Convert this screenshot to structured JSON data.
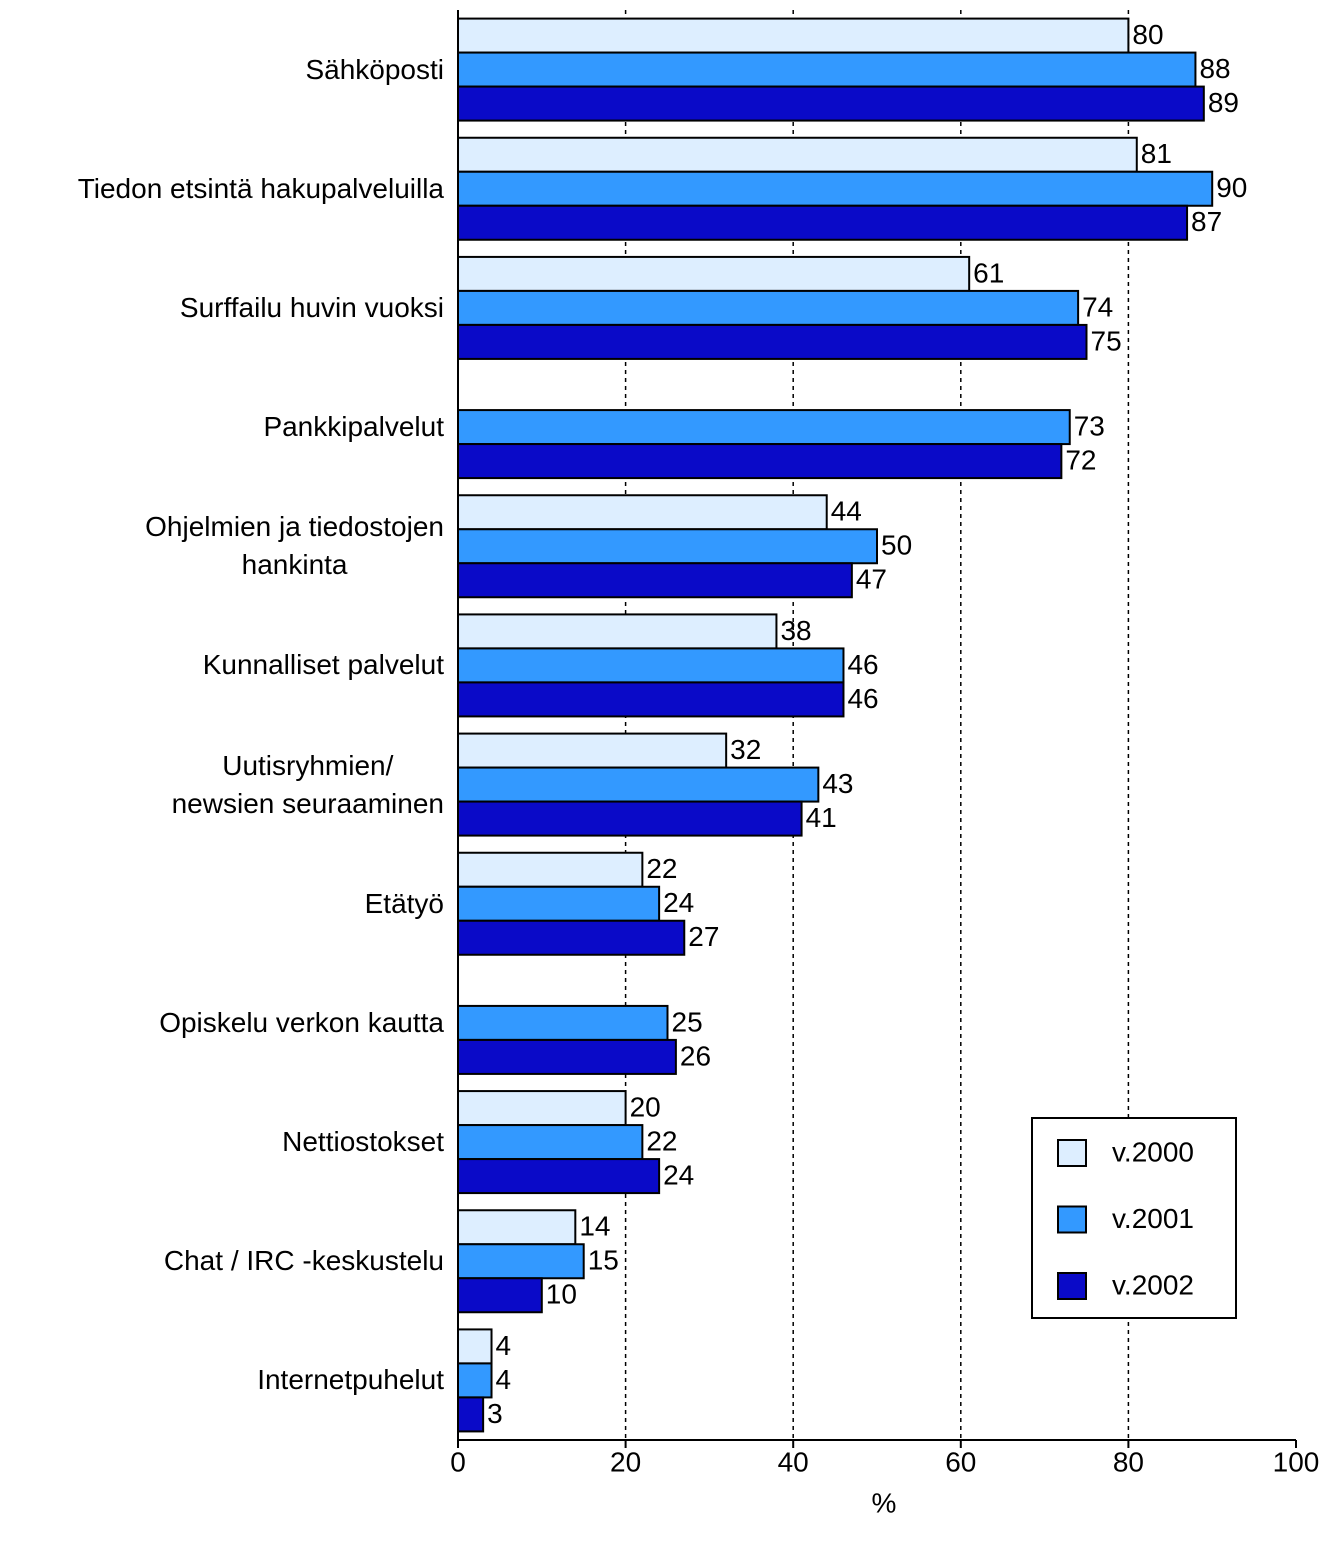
{
  "chart_data": {
    "type": "hbar",
    "categories": [
      "Sähköposti",
      "Tiedon etsintä hakupalveluilla",
      "Surffailu huvin vuoksi",
      "Pankkipalvelut",
      "Ohjelmien  ja tiedostojen\nhankinta",
      "Kunnalliset palvelut",
      "Uutisryhmien/\nnewsien seuraaminen",
      "Etätyö",
      "Opiskelu verkon kautta",
      "Nettiostokset",
      "Chat / IRC -keskustelu",
      "Internetpuhelut"
    ],
    "series": [
      {
        "name": "v.2000",
        "color": "#ddeeff",
        "values": [
          80,
          81,
          61,
          null,
          44,
          38,
          32,
          22,
          null,
          20,
          14,
          4
        ]
      },
      {
        "name": "v.2001",
        "color": "#3399ff",
        "values": [
          88,
          90,
          74,
          73,
          50,
          46,
          43,
          24,
          25,
          22,
          15,
          4
        ]
      },
      {
        "name": "v.2002",
        "color": "#0a0ac8",
        "values": [
          89,
          87,
          75,
          72,
          47,
          46,
          41,
          27,
          26,
          24,
          10,
          3
        ]
      }
    ],
    "xlabel": "%",
    "xlim": [
      0,
      100
    ],
    "xticks": [
      0,
      20,
      40,
      60,
      80,
      100
    ],
    "grid": true,
    "legend": "lower right"
  }
}
